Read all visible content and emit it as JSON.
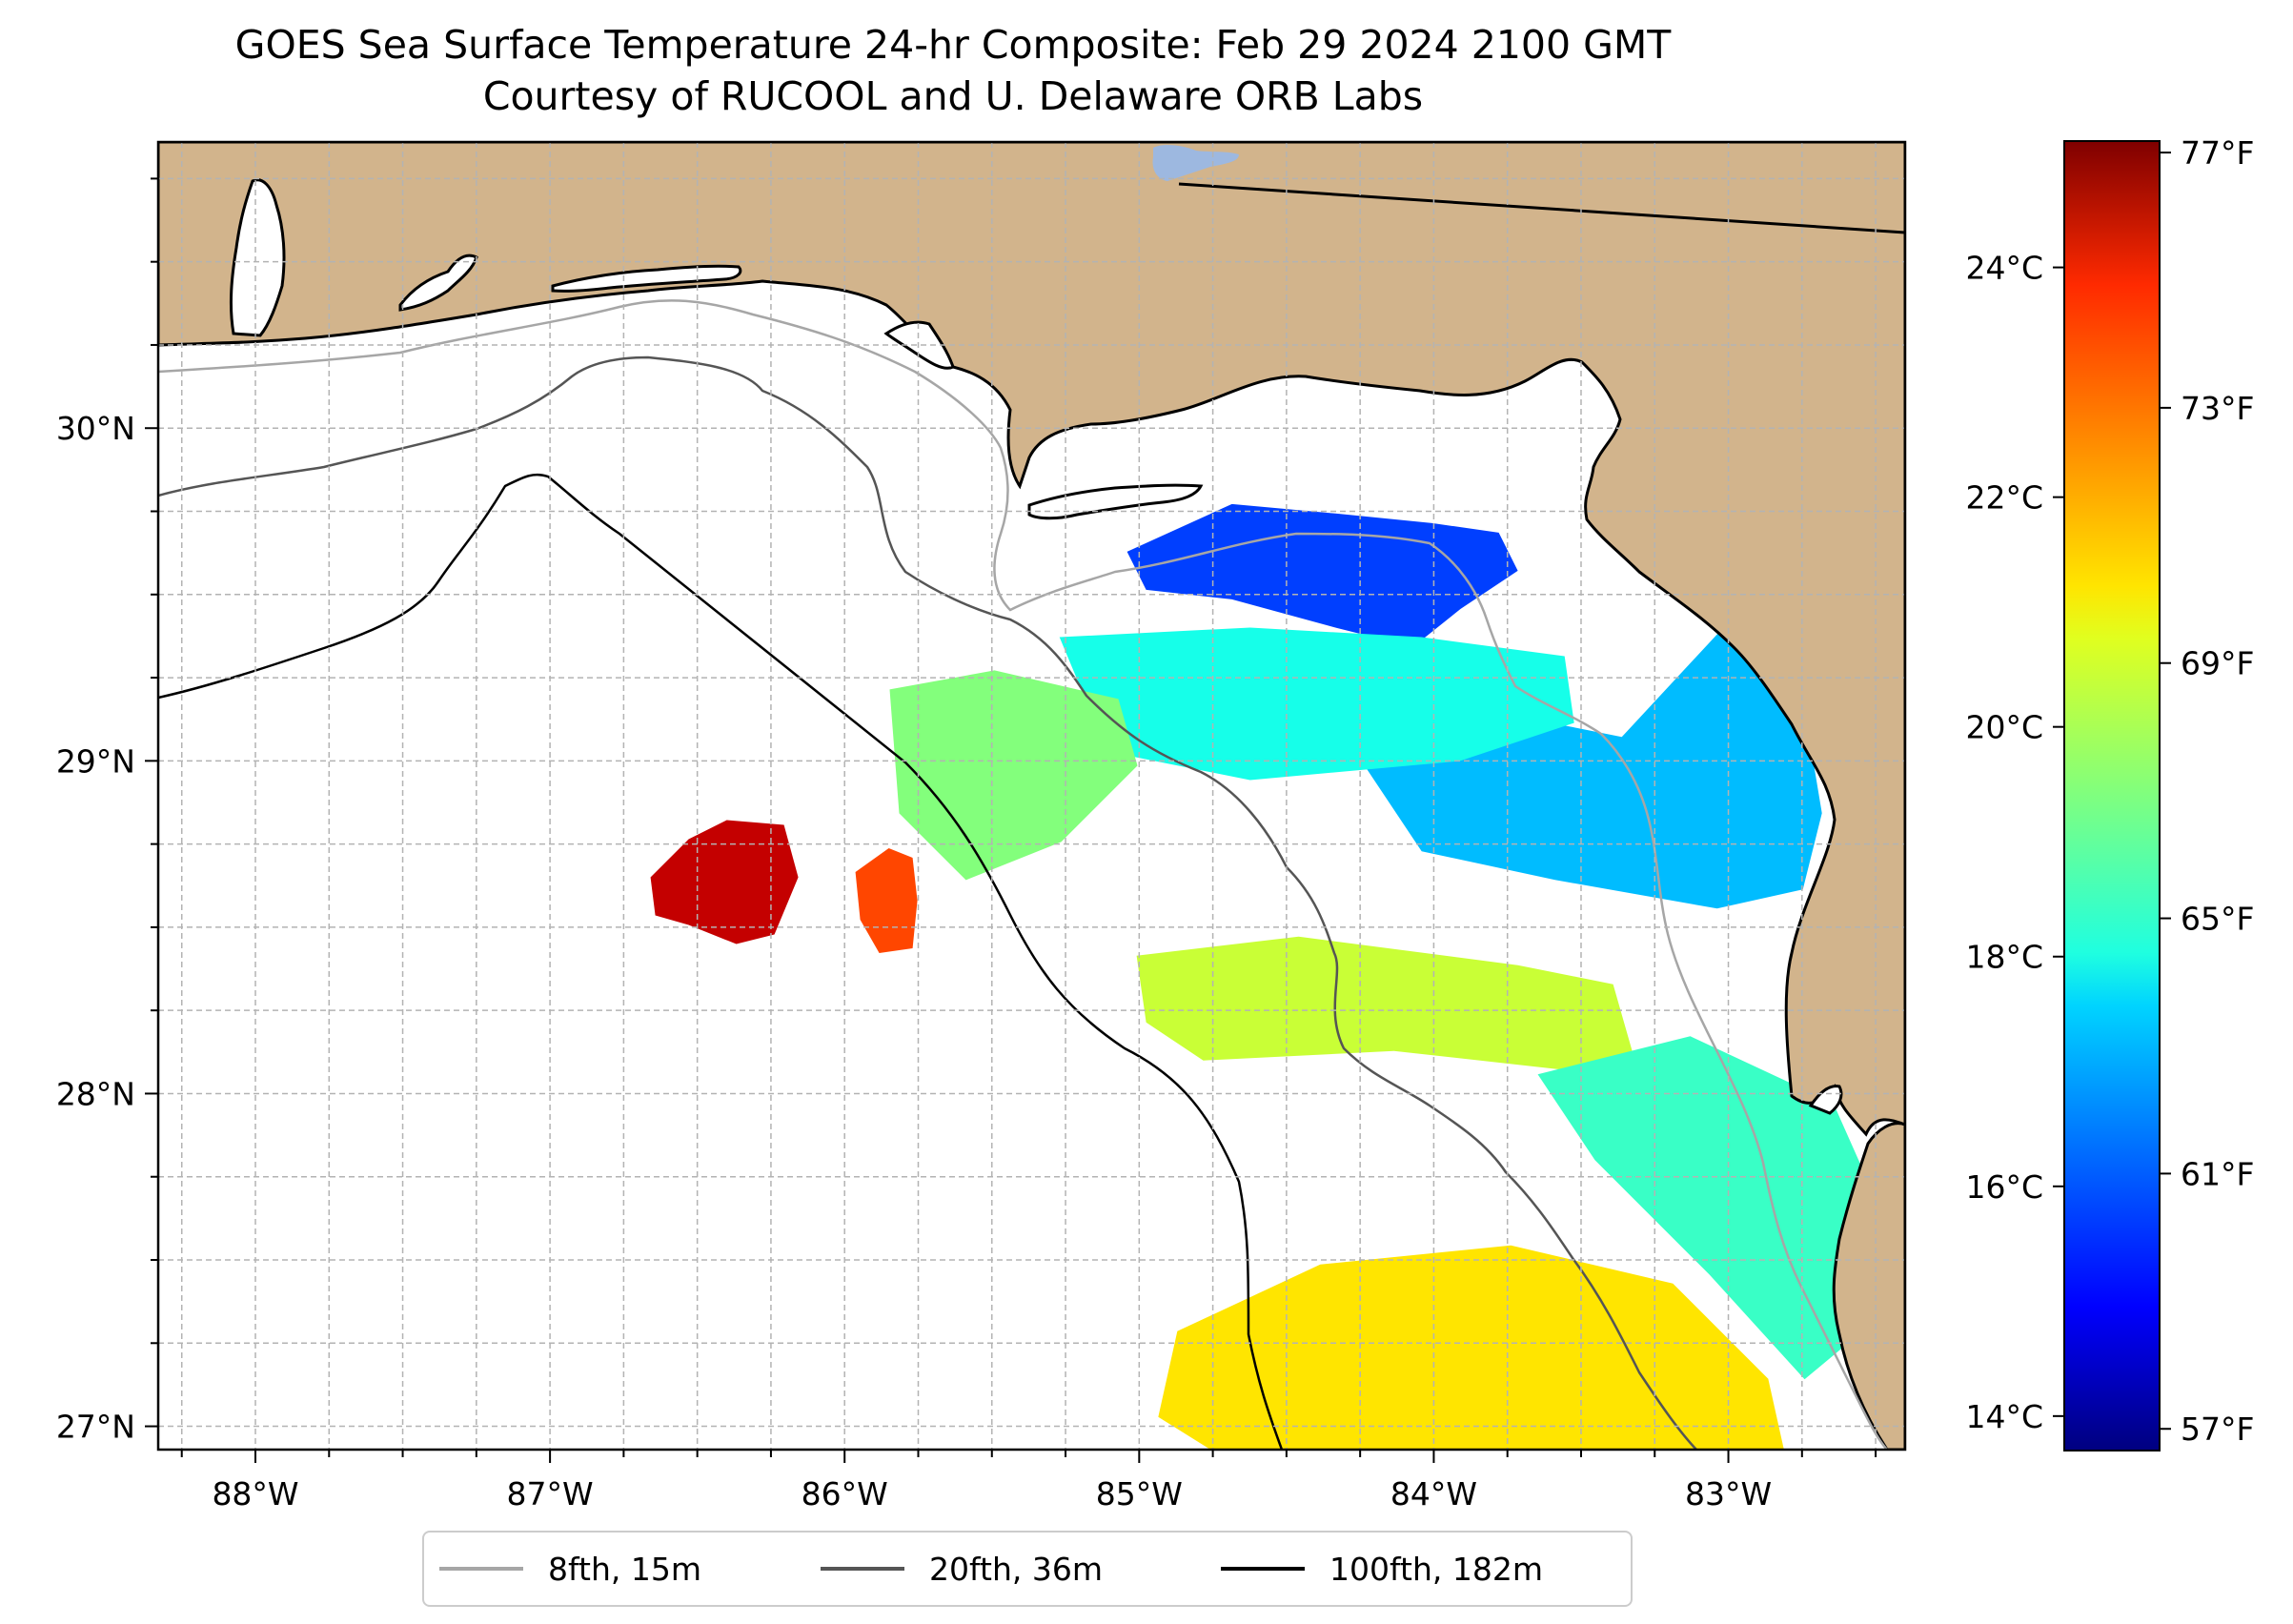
{
  "title": {
    "line1": "GOES Sea Surface Temperature 24-hr Composite: Feb 29 2024 2100 GMT",
    "line2": "Courtesy of RUCOOL and U. Delaware ORB Labs"
  },
  "map": {
    "lon_range": [
      -88.33,
      -82.4
    ],
    "lat_range": [
      26.93,
      30.86
    ],
    "land_color": "#d2b48c",
    "water_color": "#ffffff",
    "grid": true,
    "lon_ticks": [
      {
        "value": -88,
        "label": "88°W"
      },
      {
        "value": -87,
        "label": "87°W"
      },
      {
        "value": -86,
        "label": "86°W"
      },
      {
        "value": -85,
        "label": "85°W"
      },
      {
        "value": -84,
        "label": "84°W"
      },
      {
        "value": -83,
        "label": "83°W"
      }
    ],
    "lat_ticks": [
      {
        "value": 27,
        "label": "27°N"
      },
      {
        "value": 28,
        "label": "28°N"
      },
      {
        "value": 29,
        "label": "29°N"
      },
      {
        "value": 30,
        "label": "30°N"
      }
    ]
  },
  "sst_patches": [
    {
      "id": "patch-far-west-warm",
      "lon": -86.4,
      "lat": 28.65,
      "value_f": 75.8
    },
    {
      "id": "patch-west-warm",
      "lon": -85.85,
      "lat": 28.58,
      "value_f": 73.2
    },
    {
      "id": "patch-apalachee-bay",
      "lon": -84.2,
      "lat": 29.6,
      "value_f": 60.5
    },
    {
      "id": "patch-big-bend-coast",
      "lon": -83.2,
      "lat": 28.9,
      "value_f": 63.0
    },
    {
      "id": "patch-mid-shelf",
      "lon": -84.3,
      "lat": 29.2,
      "value_f": 64.8
    },
    {
      "id": "patch-west-shelf",
      "lon": -85.2,
      "lat": 29.1,
      "value_f": 67.0
    },
    {
      "id": "patch-central-band",
      "lon": -84.2,
      "lat": 28.3,
      "value_f": 68.4
    },
    {
      "id": "patch-southeast-coast",
      "lon": -83.0,
      "lat": 27.8,
      "value_f": 65.5
    },
    {
      "id": "patch-south-warm",
      "lon": -83.9,
      "lat": 27.2,
      "value_f": 70.0
    }
  ],
  "colorbar": {
    "colormap": "jet",
    "celsius_range": [
      13.7,
      25.1
    ],
    "celsius_ticks": [
      {
        "value": 14,
        "label": "14°C"
      },
      {
        "value": 16,
        "label": "16°C"
      },
      {
        "value": 18,
        "label": "18°C"
      },
      {
        "value": 20,
        "label": "20°C"
      },
      {
        "value": 22,
        "label": "22°C"
      },
      {
        "value": 24,
        "label": "24°C"
      }
    ],
    "fahrenheit_ticks": [
      {
        "value": 57,
        "label": "57°F"
      },
      {
        "value": 61,
        "label": "61°F"
      },
      {
        "value": 65,
        "label": "65°F"
      },
      {
        "value": 69,
        "label": "69°F"
      },
      {
        "value": 73,
        "label": "73°F"
      },
      {
        "value": 77,
        "label": "77°F"
      }
    ]
  },
  "legend": {
    "items": [
      {
        "label": "8fth, 15m",
        "color": "#a6a6a6"
      },
      {
        "label": "20fth, 36m",
        "color": "#555555"
      },
      {
        "label": "100fth, 182m",
        "color": "#000000"
      }
    ]
  }
}
